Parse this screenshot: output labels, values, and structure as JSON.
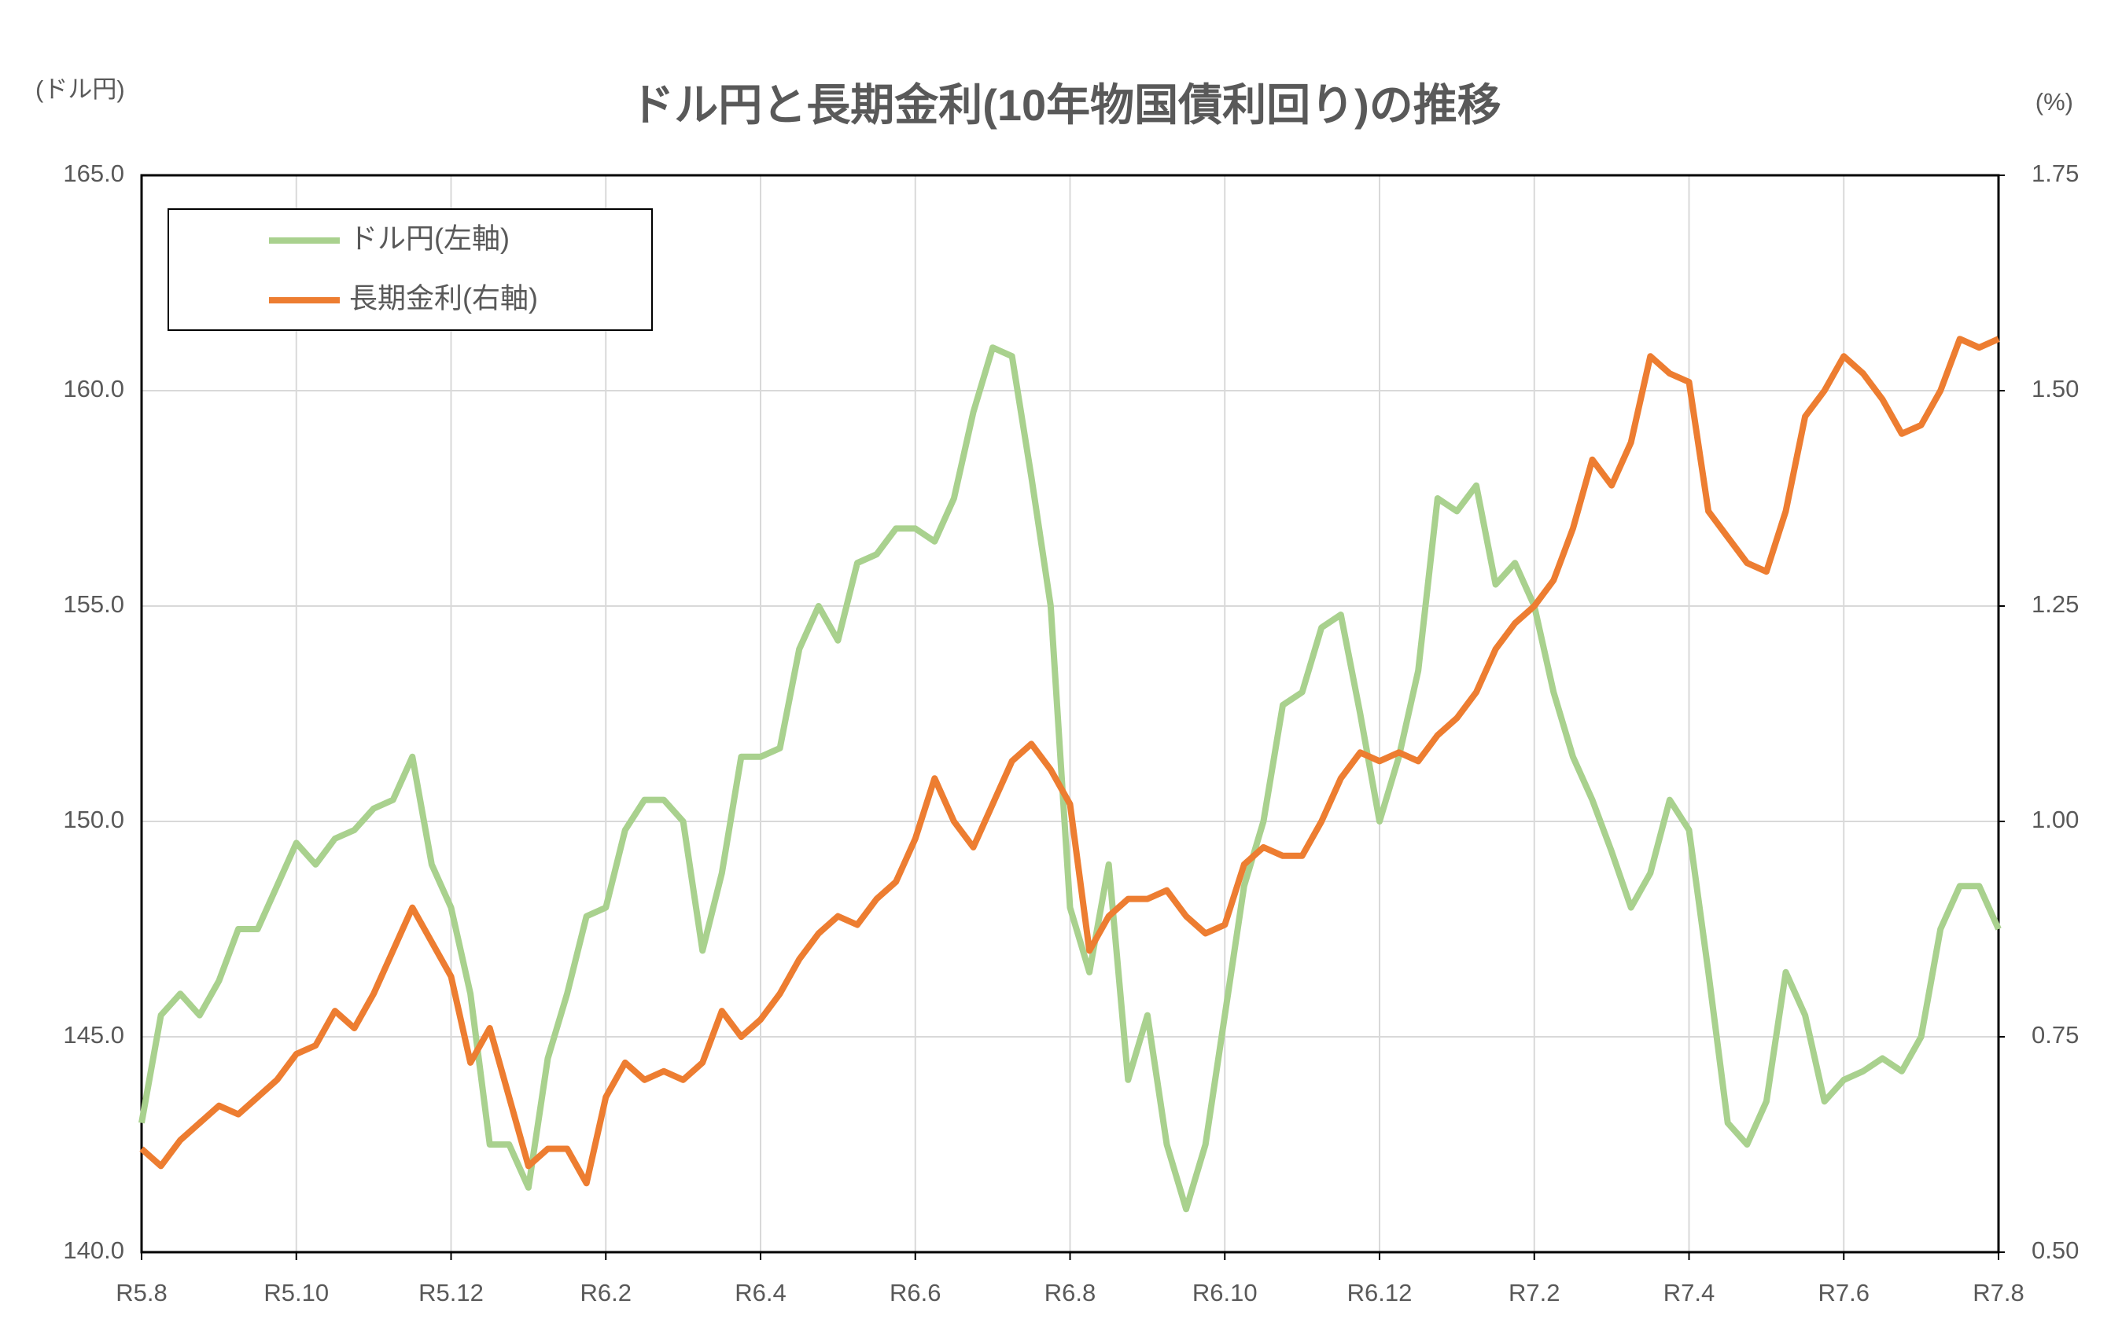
{
  "chart_data": {
    "type": "line",
    "title": "ドル円と長期金利(10年物国債利回り)の推移",
    "y_label": "(ドル円)",
    "y2_label": "(%)",
    "categories": [
      "R5.8",
      null,
      null,
      null,
      null,
      null,
      null,
      null,
      "R5.10",
      null,
      null,
      null,
      null,
      null,
      null,
      null,
      "R5.12",
      null,
      null,
      null,
      null,
      null,
      null,
      null,
      "R6.2",
      null,
      null,
      null,
      null,
      null,
      null,
      null,
      "R6.4",
      null,
      null,
      null,
      null,
      null,
      null,
      null,
      "R6.6",
      null,
      null,
      null,
      null,
      null,
      null,
      null,
      "R6.8",
      null,
      null,
      null,
      null,
      null,
      null,
      null,
      "R6.10",
      null,
      null,
      null,
      null,
      null,
      null,
      null,
      "R6.12",
      null,
      null,
      null,
      null,
      null,
      null,
      null,
      "R7.2",
      null,
      null,
      null,
      null,
      null,
      null,
      null,
      "R7.4",
      null,
      null,
      null,
      null,
      null,
      null,
      null,
      "R7.6",
      null,
      null,
      null,
      null,
      null,
      null,
      null,
      "R7.8"
    ],
    "series": [
      {
        "name": "ドル円(左軸)",
        "color": "#a9d18e",
        "axis": "y",
        "values": [
          143,
          145.5,
          146,
          145.5,
          146.3,
          147.5,
          147.5,
          148.5,
          149.5,
          149,
          149.6,
          149.8,
          150.3,
          150.5,
          151.5,
          149,
          148,
          146,
          142.5,
          142.5,
          141.5,
          144.5,
          146,
          147.8,
          148,
          149.8,
          150.5,
          150.5,
          150,
          147,
          148.8,
          151.5,
          151.5,
          151.7,
          154,
          155,
          154.2,
          156,
          156.2,
          156.8,
          156.8,
          156.5,
          157.5,
          159.5,
          161,
          160.8,
          158,
          155,
          148,
          146.5,
          149,
          144,
          145.5,
          142.5,
          141,
          142.5,
          145.5,
          148.5,
          150,
          152.7,
          153,
          154.5,
          154.8,
          152.5,
          150,
          151.5,
          153.5,
          157.5,
          157.2,
          157.8,
          155.5,
          156,
          155,
          153,
          151.5,
          150.5,
          149.3,
          148,
          148.8,
          150.5,
          149.8,
          146.5,
          143,
          142.5,
          143.5,
          146.5,
          145.5,
          143.5,
          144,
          144.2,
          144.5,
          144.2,
          145,
          147.5,
          148.5,
          148.5,
          147.5
        ]
      },
      {
        "name": "長期金利(右軸)",
        "color": "#ed7d31",
        "axis": "y2",
        "values": [
          0.62,
          0.6,
          0.63,
          0.65,
          0.67,
          0.66,
          0.68,
          0.7,
          0.73,
          0.74,
          0.78,
          0.76,
          0.8,
          0.85,
          0.9,
          0.86,
          0.82,
          0.72,
          0.76,
          0.68,
          0.6,
          0.62,
          0.62,
          0.58,
          0.68,
          0.72,
          0.7,
          0.71,
          0.7,
          0.72,
          0.78,
          0.75,
          0.77,
          0.8,
          0.84,
          0.87,
          0.89,
          0.88,
          0.91,
          0.93,
          0.98,
          1.05,
          1.0,
          0.97,
          1.02,
          1.07,
          1.09,
          1.06,
          1.02,
          0.85,
          0.89,
          0.91,
          0.91,
          0.92,
          0.89,
          0.87,
          0.88,
          0.95,
          0.97,
          0.96,
          0.96,
          1.0,
          1.05,
          1.08,
          1.07,
          1.08,
          1.07,
          1.1,
          1.12,
          1.15,
          1.2,
          1.23,
          1.25,
          1.28,
          1.34,
          1.42,
          1.39,
          1.44,
          1.54,
          1.52,
          1.51,
          1.36,
          1.33,
          1.3,
          1.29,
          1.36,
          1.47,
          1.5,
          1.54,
          1.52,
          1.49,
          1.45,
          1.46,
          1.5,
          1.56,
          1.55,
          1.56
        ]
      }
    ],
    "ylim": [
      140,
      165
    ],
    "yticks": [
      {
        "value": 140,
        "label": "140.0"
      },
      {
        "value": 145,
        "label": "145.0"
      },
      {
        "value": 150,
        "label": "150.0"
      },
      {
        "value": 155,
        "label": "155.0"
      },
      {
        "value": 160,
        "label": "160.0"
      },
      {
        "value": 165,
        "label": "165.0"
      }
    ],
    "y2lim": [
      0.5,
      1.75
    ],
    "y2ticks": [
      {
        "value": 0.5,
        "label": "0.50"
      },
      0.75,
      {
        "value": 1.0,
        "label": "1.00"
      },
      1.25,
      {
        "value": 1.5,
        "label": "1.50"
      },
      1.75
    ],
    "grid": true,
    "legend": "upper left"
  }
}
